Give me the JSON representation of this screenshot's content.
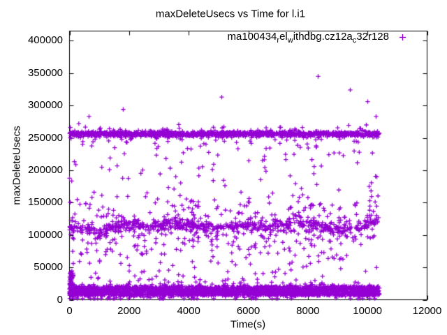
{
  "chart_data": {
    "type": "scatter",
    "title": "maxDeleteUsecs vs Time for l.i1",
    "xlabel": "Time(s)",
    "ylabel": "maxDeleteUsecs",
    "xlim": [
      0,
      12000
    ],
    "ylim": [
      0,
      415000
    ],
    "x_ticks": [
      0,
      2000,
      4000,
      6000,
      8000,
      10000,
      12000
    ],
    "y_ticks": [
      0,
      50000,
      100000,
      150000,
      200000,
      250000,
      300000,
      350000,
      400000
    ],
    "grid": false,
    "legend_position": "top-right-inside",
    "background_color": "#ffffff",
    "axis_color": "#000000",
    "series": [
      {
        "name": "ma100434_rel_withdbg.cz12a_c32r128",
        "name_segments": [
          {
            "text": "ma100434"
          },
          {
            "text": "r",
            "sub": true
          },
          {
            "text": "el"
          },
          {
            "text": "w",
            "sub": true
          },
          {
            "text": "ithdbg.cz12a"
          },
          {
            "text": "c",
            "sub": true
          },
          {
            "text": "32r128"
          }
        ],
        "marker": "plus",
        "color": "#9400d3",
        "x_range": [
          0,
          10400
        ],
        "description": "maxDeleteUsecs samples over ~10400s forming three dense horizontal bands (~256000us, wavy ~112000us, ~13000us) plus sparse scatter between bands and a few high outliers",
        "bands": [
          {
            "name": "top-band-core",
            "count": 1450,
            "x_range": [
              0,
              10400
            ],
            "center": [
              [
                0,
                256000
              ],
              [
                10400,
                256000
              ]
            ],
            "std": 1700,
            "tail_frac": 0.12,
            "tail_std": 5500,
            "clamp": [
              240000,
              273000
            ]
          },
          {
            "name": "mid-band-core",
            "count": 560,
            "x_range": [
              0,
              10400
            ],
            "center": [
              [
                0,
                111000
              ],
              [
                400,
                108000
              ],
              [
                1200,
                109000
              ],
              [
                2000,
                116000
              ],
              [
                2800,
                113000
              ],
              [
                3600,
                117000
              ],
              [
                4400,
                113000
              ],
              [
                5200,
                111000
              ],
              [
                6000,
                117000
              ],
              [
                6800,
                110000
              ],
              [
                7600,
                119000
              ],
              [
                8400,
                112000
              ],
              [
                9200,
                107000
              ],
              [
                9800,
                112000
              ],
              [
                10400,
                124000
              ]
            ],
            "std": 4200
          },
          {
            "name": "mid-band-halo",
            "count": 360,
            "x_range": [
              0,
              10400
            ],
            "center": [
              [
                0,
                111000
              ],
              [
                400,
                108000
              ],
              [
                1200,
                109000
              ],
              [
                2000,
                116000
              ],
              [
                2800,
                113000
              ],
              [
                3600,
                117000
              ],
              [
                4400,
                113000
              ],
              [
                5200,
                111000
              ],
              [
                6000,
                117000
              ],
              [
                6800,
                110000
              ],
              [
                7600,
                119000
              ],
              [
                8400,
                112000
              ],
              [
                9200,
                107000
              ],
              [
                9800,
                112000
              ],
              [
                10400,
                124000
              ]
            ],
            "std": 26000,
            "clamp": [
              53000,
              208000
            ]
          },
          {
            "name": "bottom-band-core",
            "count": 2000,
            "x_range": [
              0,
              10400
            ],
            "y_uniform": [
              6500,
              20500
            ]
          },
          {
            "name": "bottom-band-halo",
            "count": 650,
            "x_range": [
              0,
              10400
            ],
            "center": [
              [
                0,
                13500
              ],
              [
                10400,
                13500
              ]
            ],
            "std": 6800,
            "clamp": [
              2000,
              31000
            ]
          },
          {
            "name": "high-sparse",
            "count": 120,
            "x_range": [
              0,
              10400
            ],
            "y_uniform": [
              138000,
              248000
            ]
          },
          {
            "name": "low-sparse",
            "count": 90,
            "x_range": [
              0,
              10400
            ],
            "y_uniform": [
              26000,
              96000
            ]
          },
          {
            "name": "left-start-strip",
            "count": 65,
            "x_range": [
              0,
              130
            ],
            "y_uniform": [
              1500,
              45000
            ]
          }
        ],
        "outliers": [
          [
            656,
            283000
          ],
          [
            1804,
            294000
          ],
          [
            5109,
            313000
          ],
          [
            5180,
            267000
          ],
          [
            8344,
            345000
          ],
          [
            9422,
            324000
          ],
          [
            10008,
            306000
          ],
          [
            9961,
            270000
          ],
          [
            10289,
            283000
          ]
        ]
      }
    ]
  }
}
